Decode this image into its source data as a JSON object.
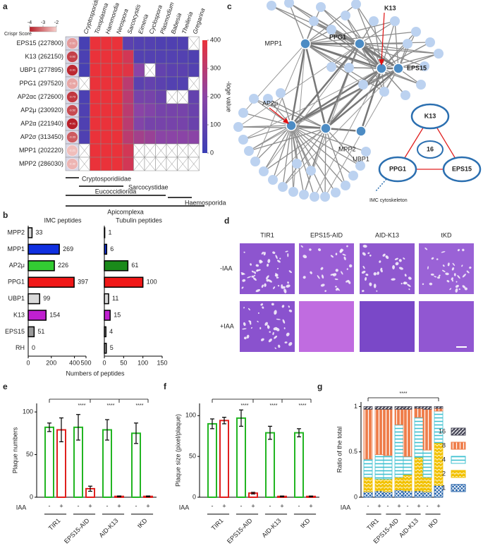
{
  "chart_data": [
    {
      "type": "heatmap",
      "panel_label": "a",
      "columns": [
        "Cryptosporidium",
        "Toxoplasma",
        "Hammondia",
        "Neospora",
        "Sarcocystis",
        "Eimeria",
        "Cyclospora",
        "Plasmodium",
        "Babesia",
        "Theileria",
        "Gregarina"
      ],
      "rows": [
        "EPS15 (227800)",
        "K13 (262150)",
        "UBP1 (277895)",
        "PPG1 (297520)",
        "AP2αc (272600)",
        "AP2μ (230920)",
        "AP2α (221940)",
        "AP2σ (313450)",
        "MPP1 (202220)",
        "MPP2 (286030)"
      ],
      "values": [
        [
          30,
          400,
          400,
          400,
          80,
          60,
          60,
          50,
          50,
          50,
          null
        ],
        [
          40,
          400,
          400,
          400,
          350,
          60,
          60,
          60,
          60,
          60,
          50
        ],
        [
          30,
          400,
          400,
          400,
          380,
          200,
          null,
          100,
          80,
          80,
          60
        ],
        [
          null,
          400,
          400,
          400,
          300,
          80,
          100,
          80,
          60,
          60,
          null
        ],
        [
          40,
          400,
          400,
          400,
          300,
          150,
          150,
          120,
          null,
          null,
          100
        ],
        [
          50,
          400,
          400,
          400,
          300,
          200,
          180,
          150,
          150,
          150,
          120
        ],
        [
          50,
          400,
          400,
          400,
          300,
          180,
          150,
          150,
          150,
          150,
          120
        ],
        [
          50,
          400,
          400,
          400,
          300,
          250,
          230,
          200,
          200,
          200,
          200
        ],
        [
          null,
          400,
          400,
          400,
          350,
          null,
          null,
          null,
          null,
          null,
          null
        ],
        [
          null,
          400,
          400,
          400,
          350,
          null,
          null,
          null,
          null,
          null,
          null
        ]
      ],
      "clim": [
        0,
        400
      ],
      "cticks": [
        0,
        100,
        200,
        300,
        400
      ],
      "colorbar_label": "-loge value",
      "crispr_title": "Crispr Score",
      "crispr_scores": [
        -2.61,
        -3.62,
        -3.91,
        -2.48,
        -3.73,
        -3.52,
        -4.01,
        -3.33,
        -2.21,
        -2.32
      ],
      "crispr_lim": [
        -4,
        -2
      ],
      "crispr_ticks": [
        -4,
        -3,
        -2
      ],
      "groups": [
        "Cryptosporidiidae",
        "Sarcocystidae",
        "Eucoccidiorida",
        "Haemosporida",
        "Apicomplexa"
      ]
    },
    {
      "type": "hbar",
      "panel_label": "b",
      "title": "IMC peptides",
      "xlabel": "Numbers of peptides",
      "categories": [
        "MPP2",
        "MPP1",
        "AP2μ",
        "PPG1",
        "UBP1",
        "K13",
        "EPS15",
        "RH"
      ],
      "values": [
        33,
        269,
        226,
        397,
        99,
        154,
        51,
        0
      ],
      "colors": [
        "#d9d9d9",
        "#1030e0",
        "#33cc33",
        "#f01818",
        "#d9d9d9",
        "#c020d0",
        "#9a9a9a",
        "#ffffff"
      ],
      "xlim": [
        0,
        500
      ],
      "xticks": [
        0,
        200,
        400,
        500
      ]
    },
    {
      "type": "hbar",
      "title": "Tubulin peptides",
      "values": [
        1,
        6,
        61,
        100,
        11,
        15,
        4,
        5
      ],
      "colors": [
        "#d9d9d9",
        "#1030e0",
        "#1a8a1a",
        "#f01818",
        "#d9d9d9",
        "#c020d0",
        "#9a9a9a",
        "#9a9a9a"
      ],
      "xlim": [
        0,
        150
      ],
      "xticks": [
        0,
        50,
        100,
        150
      ]
    },
    {
      "type": "network",
      "panel_label": "c",
      "nodes": [
        "MPP1",
        "PPG1",
        "K13",
        "EPS15",
        "AP2μ",
        "UBP1",
        "MPP2"
      ],
      "cluster": {
        "nodes": [
          "K13",
          "PPG1",
          "EPS15"
        ],
        "center": "16",
        "annotation": "IMC cytoskeleton"
      }
    },
    {
      "type": "image-grid",
      "panel_label": "d",
      "columns": [
        "TIR1",
        "EPS15-AID",
        "AID-K13",
        "tKD"
      ],
      "rows": [
        "-IAA",
        "+IAA"
      ]
    },
    {
      "type": "bar",
      "panel_label": "e",
      "ylabel": "Plaque numbers",
      "groups": [
        "TIR1",
        "EPS15-AID",
        "AID-K13",
        "tKD"
      ],
      "condition_label": "IAA",
      "series": [
        {
          "name": "-",
          "color": "#22b522",
          "values": [
            82,
            82,
            79,
            75
          ],
          "errors": [
            5,
            15,
            12,
            12
          ]
        },
        {
          "name": "+",
          "color": "#e0201e",
          "values": [
            79,
            10,
            1,
            1
          ],
          "errors": [
            14,
            3,
            0.5,
            0.5
          ]
        }
      ],
      "ylim": [
        0,
        110
      ],
      "yticks": [
        0,
        50,
        100
      ],
      "annotations": [
        "****",
        "****",
        "****"
      ]
    },
    {
      "type": "bar",
      "panel_label": "f",
      "ylabel": "Plaque size (pixel/plaque)",
      "groups": [
        "TIR1",
        "EPS15-AID",
        "AID-K13",
        "tKD"
      ],
      "condition_label": "IAA",
      "series": [
        {
          "name": "-",
          "color": "#22b522",
          "values": [
            90,
            97,
            79,
            79
          ],
          "errors": [
            6,
            10,
            8,
            5
          ]
        },
        {
          "name": "+",
          "color": "#e0201e",
          "values": [
            94,
            5,
            1,
            1
          ],
          "errors": [
            4,
            1,
            0.5,
            0.5
          ]
        }
      ],
      "ylim": [
        0,
        115
      ],
      "yticks": [
        0,
        50,
        100
      ],
      "annotations": [
        "****",
        "****",
        "****"
      ]
    },
    {
      "type": "stacked-bar",
      "panel_label": "g",
      "ylabel": "Ratio of the total",
      "groups": [
        "TIR1",
        "EPS15-AID",
        "AID-K13",
        "tKD"
      ],
      "conditions": [
        "-",
        "+"
      ],
      "condition_label": "IAA",
      "series": [
        {
          "name": "1",
          "color": "#1f5fa8",
          "values": [
            0.06,
            0.07,
            0.06,
            0.08,
            0.07,
            0.07,
            0.06,
            0.13
          ]
        },
        {
          "name": "2",
          "color": "#f2c200",
          "values": [
            0.16,
            0.13,
            0.14,
            0.14,
            0.18,
            0.37,
            0.16,
            0.47
          ]
        },
        {
          "name": "4",
          "color": "#3fc1d0",
          "values": [
            0.2,
            0.27,
            0.26,
            0.58,
            0.2,
            0.44,
            0.3,
            0.35
          ]
        },
        {
          "name": "8",
          "color": "#ef7d4a",
          "values": [
            0.55,
            0.5,
            0.51,
            0.17,
            0.52,
            0.1,
            0.45,
            0.03
          ]
        },
        {
          "name": "16",
          "color": "#4a4a5a",
          "values": [
            0.03,
            0.03,
            0.03,
            0.03,
            0.03,
            0.02,
            0.03,
            0.02
          ]
        }
      ],
      "ylim": [
        0,
        1.05
      ],
      "yticks": [
        0,
        0.5,
        1
      ],
      "annotations": [
        "****"
      ]
    }
  ]
}
